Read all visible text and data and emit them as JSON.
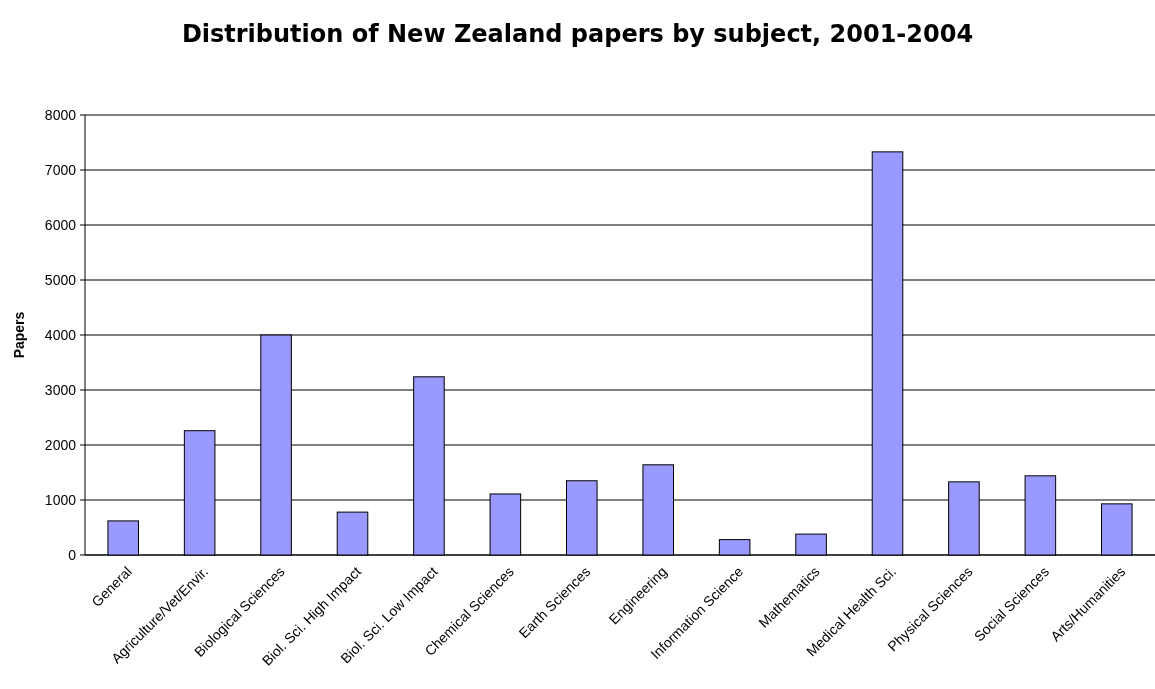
{
  "chart_data": {
    "type": "bar",
    "title": "Distribution of New Zealand papers by subject, 2001-2004",
    "ylabel": "Papers",
    "categories": [
      "General",
      "Agriculture/Vet/Envir.",
      "Biological Sciences",
      "Biol. Sci. High Impact",
      "Biol. Sci. Low Impact",
      "Chemical Sciences",
      "Earth Sciences",
      "Engineering",
      "Information Science",
      "Mathematics",
      "Medical Health Sci.",
      "Physical Sciences",
      "Social Sciences",
      "Arts/Humanities"
    ],
    "values": [
      620,
      2260,
      4000,
      780,
      3240,
      1110,
      1350,
      1640,
      280,
      380,
      7330,
      1330,
      1440,
      930
    ],
    "color": "#9999ff",
    "ylim": [
      0,
      8000
    ],
    "yticks": [
      0,
      1000,
      2000,
      3000,
      4000,
      5000,
      6000,
      7000,
      8000
    ],
    "grid": "y"
  }
}
